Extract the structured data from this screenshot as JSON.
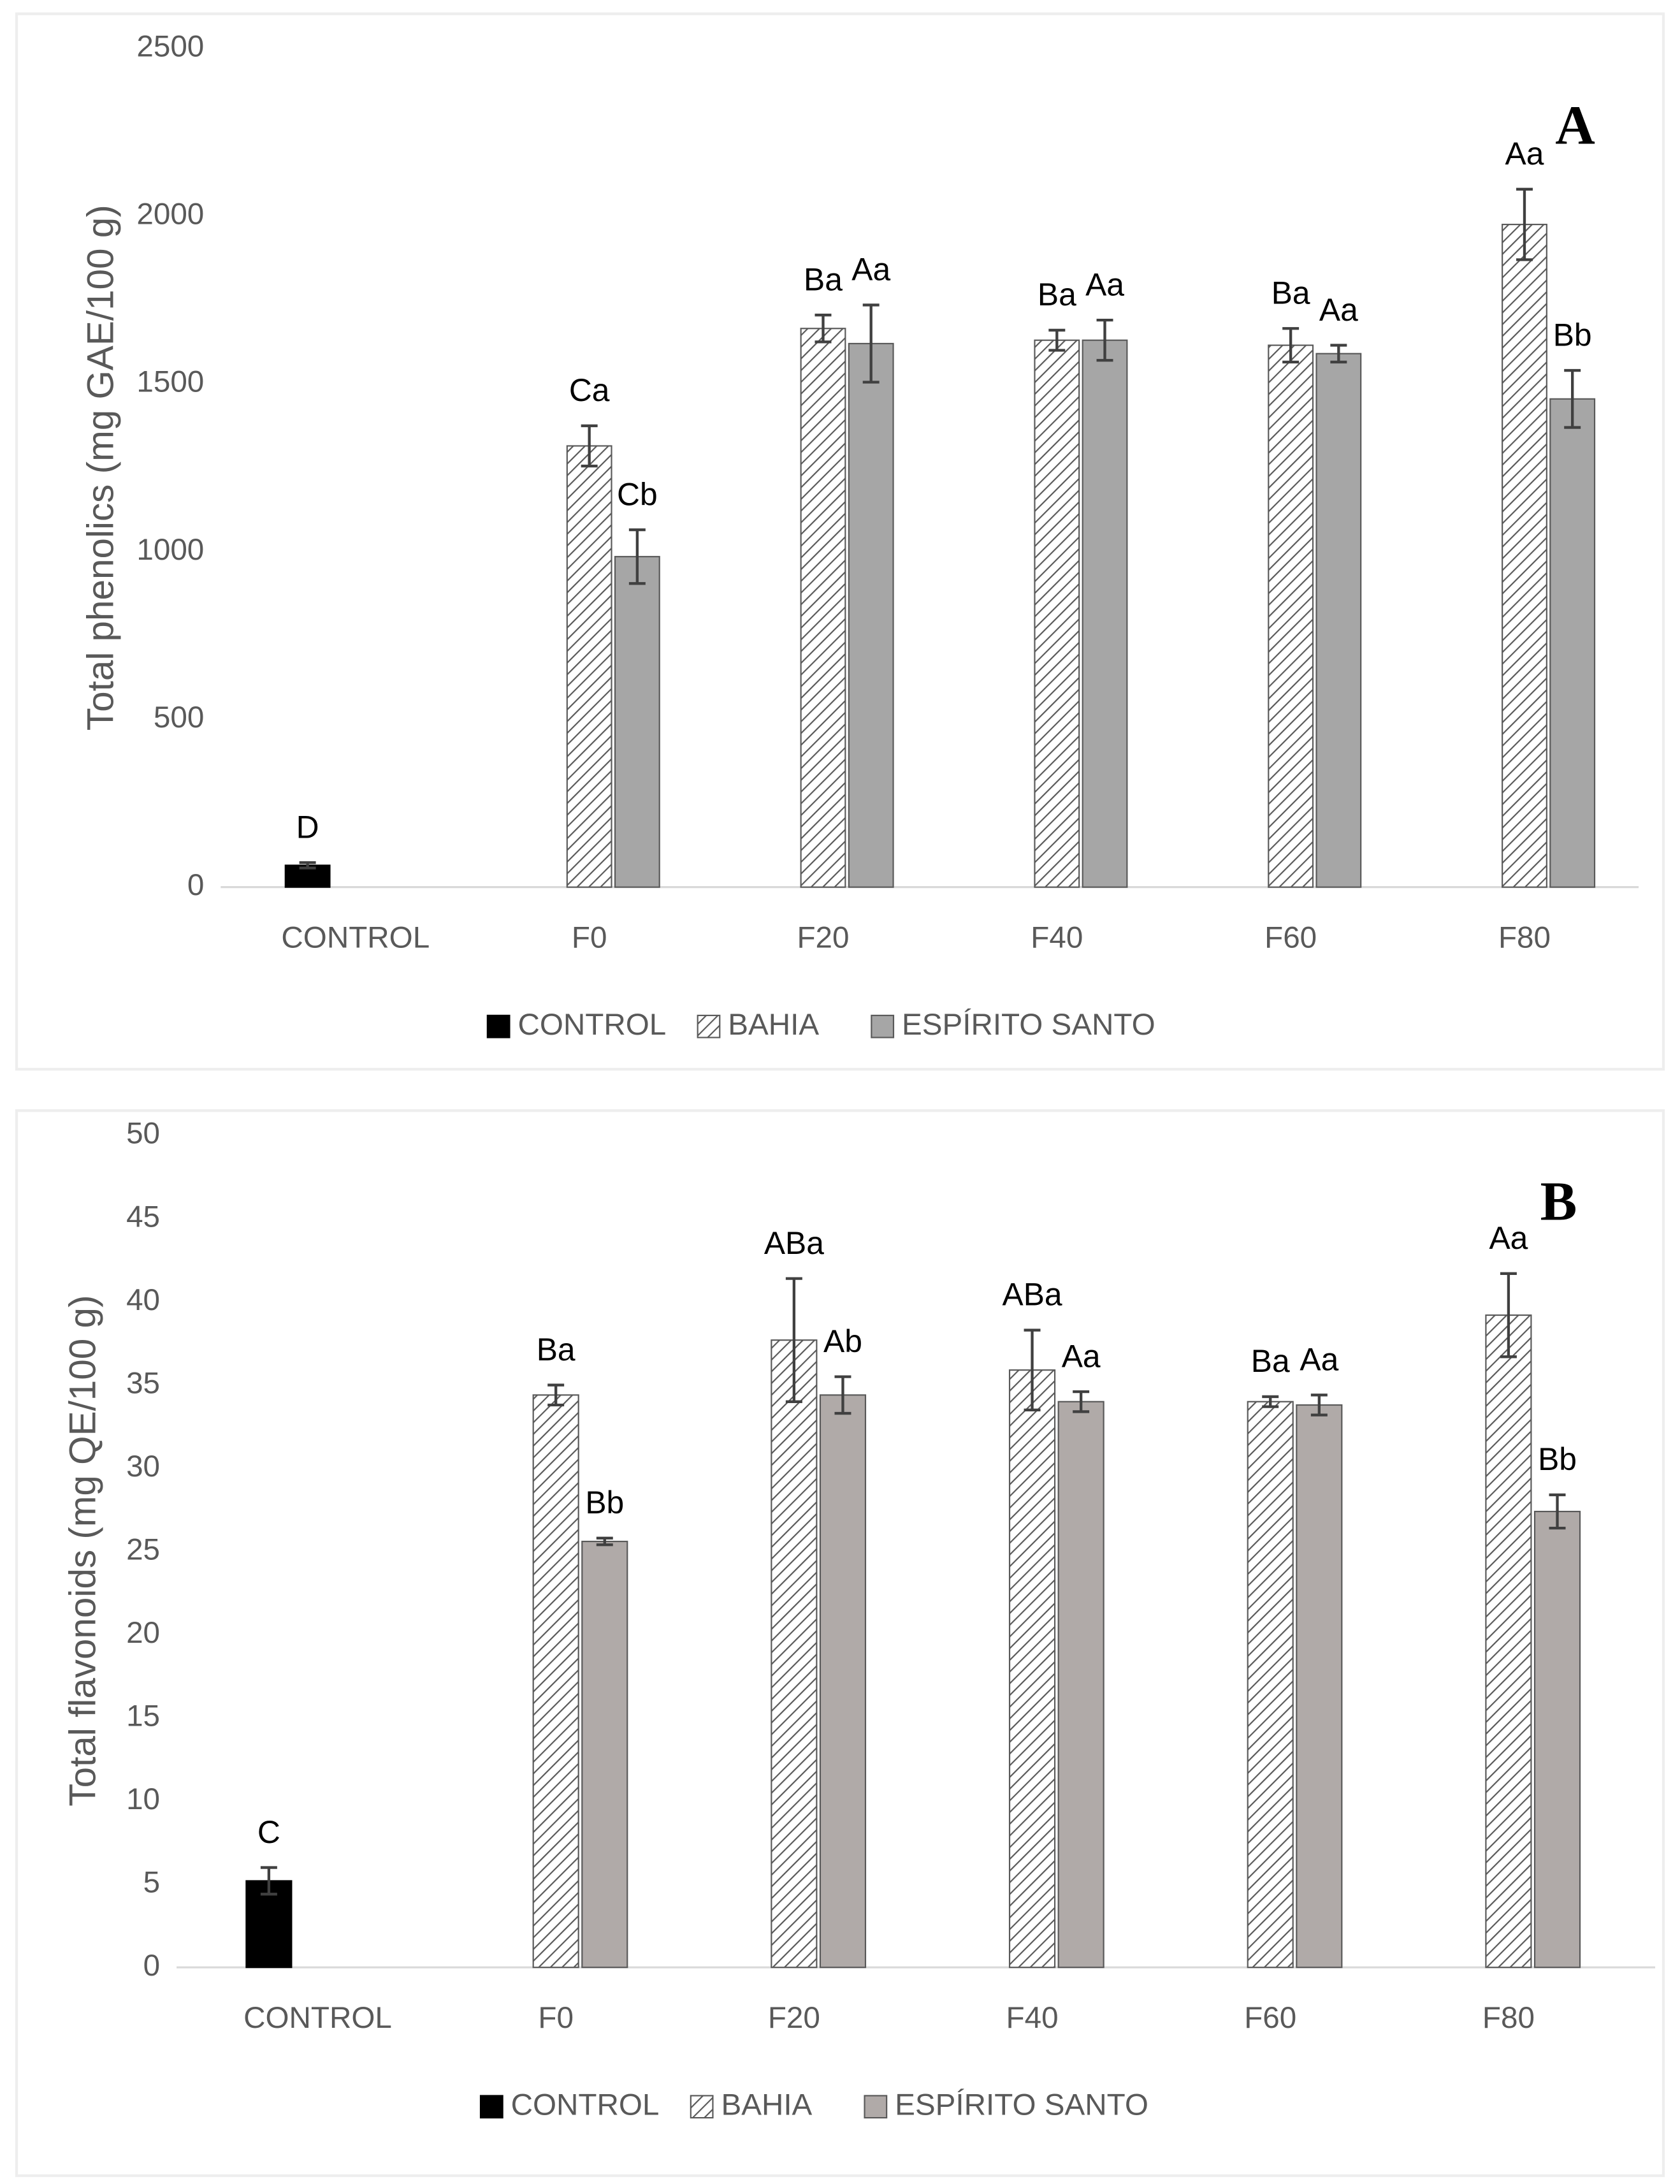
{
  "chart_data": [
    {
      "type": "bar",
      "panel_label": "A",
      "ylabel": "Total phenolics (mg GAE/100 g)",
      "categories": [
        "CONTROL",
        "F0",
        "F20",
        "F40",
        "F60",
        "F80"
      ],
      "ylim": [
        0,
        2500
      ],
      "yticks": [
        0,
        500,
        1000,
        1500,
        2000,
        2500
      ],
      "grid": false,
      "series": [
        {
          "name": "CONTROL",
          "color": "#000000",
          "values": [
            65,
            null,
            null,
            null,
            null,
            null
          ],
          "errors": [
            8,
            null,
            null,
            null,
            null,
            null
          ],
          "annotations": [
            "D",
            null,
            null,
            null,
            null,
            null
          ]
        },
        {
          "name": "BAHIA",
          "color": "#595959",
          "pattern": "hatch",
          "values": [
            null,
            1315,
            1665,
            1630,
            1615,
            1975
          ],
          "errors": [
            null,
            60,
            40,
            30,
            50,
            105
          ],
          "annotations": [
            null,
            "Ca",
            "Ba",
            "Ba",
            "Ba",
            "Aa"
          ]
        },
        {
          "name": "ESPÍRITO SANTO",
          "color": "#a6a6a6",
          "values": [
            null,
            985,
            1620,
            1630,
            1590,
            1455
          ],
          "errors": [
            null,
            80,
            115,
            60,
            25,
            85
          ],
          "annotations": [
            null,
            "Cb",
            "Aa",
            "Aa",
            "Aa",
            "Bb"
          ]
        }
      ]
    },
    {
      "type": "bar",
      "panel_label": "B",
      "ylabel": "Total flavonoids  (mg QE/100 g)",
      "categories": [
        "CONTROL",
        "F0",
        "F20",
        "F40",
        "F60",
        "F80"
      ],
      "ylim": [
        0,
        50
      ],
      "yticks": [
        0,
        5,
        10,
        15,
        20,
        25,
        30,
        35,
        40,
        45,
        50
      ],
      "grid": false,
      "series": [
        {
          "name": "CONTROL",
          "color": "#000000",
          "values": [
            5.2,
            null,
            null,
            null,
            null,
            null
          ],
          "errors": [
            0.8,
            null,
            null,
            null,
            null,
            null
          ],
          "annotations": [
            "C",
            null,
            null,
            null,
            null,
            null
          ]
        },
        {
          "name": "BAHIA",
          "color": "#595959",
          "pattern": "hatch",
          "values": [
            null,
            34.4,
            37.7,
            35.9,
            34.0,
            39.2
          ],
          "errors": [
            null,
            0.6,
            3.7,
            2.4,
            0.3,
            2.5
          ],
          "annotations": [
            null,
            "Ba",
            "ABa",
            "ABa",
            "Ba",
            "Aa"
          ]
        },
        {
          "name": "ESPÍRITO SANTO",
          "color": "#b0aaa8",
          "values": [
            null,
            25.6,
            34.4,
            34.0,
            33.8,
            27.4
          ],
          "errors": [
            null,
            0.2,
            1.1,
            0.6,
            0.6,
            1.0
          ],
          "annotations": [
            null,
            "Bb",
            "Ab",
            "Aa",
            "Aa",
            "Bb"
          ]
        }
      ]
    }
  ]
}
